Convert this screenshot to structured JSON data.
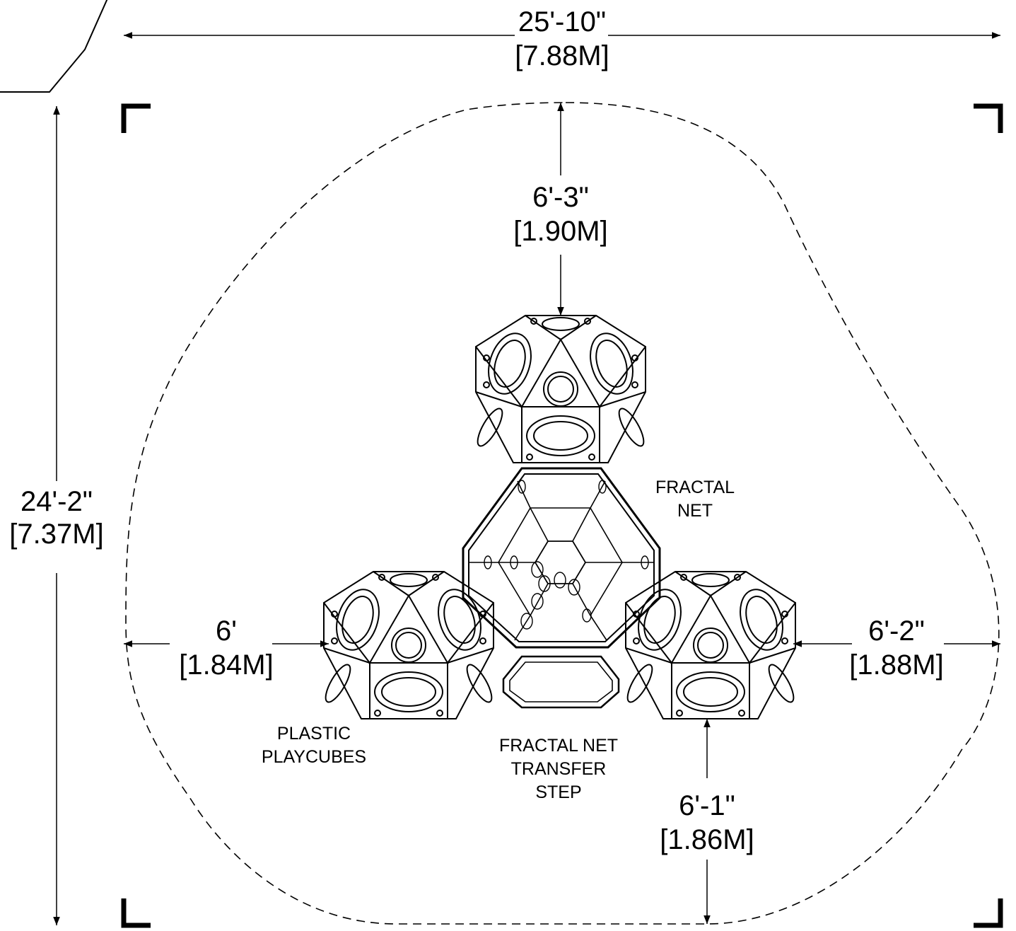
{
  "dimensions": {
    "overall_width": {
      "imperial": "25'-10\"",
      "metric": "[7.88M]"
    },
    "overall_height": {
      "imperial": "24'-2\"",
      "metric": "[7.37M]"
    },
    "top_clearance": {
      "imperial": "6'-3\"",
      "metric": "[1.90M]"
    },
    "left_clearance": {
      "imperial": "6'",
      "metric": "[1.84M]"
    },
    "right_clearance": {
      "imperial": "6'-2\"",
      "metric": "[1.88M]"
    },
    "bottom_clearance": {
      "imperial": "6'-1\"",
      "metric": "[1.86M]"
    }
  },
  "labels": {
    "fractal_net": [
      "FRACTAL",
      "NET"
    ],
    "playcubes": [
      "PLASTIC",
      "PLAYCUBES"
    ],
    "transfer_step": [
      "FRACTAL NET",
      "TRANSFER",
      "STEP"
    ]
  },
  "colors": {
    "line": "#000000",
    "background": "#ffffff"
  }
}
